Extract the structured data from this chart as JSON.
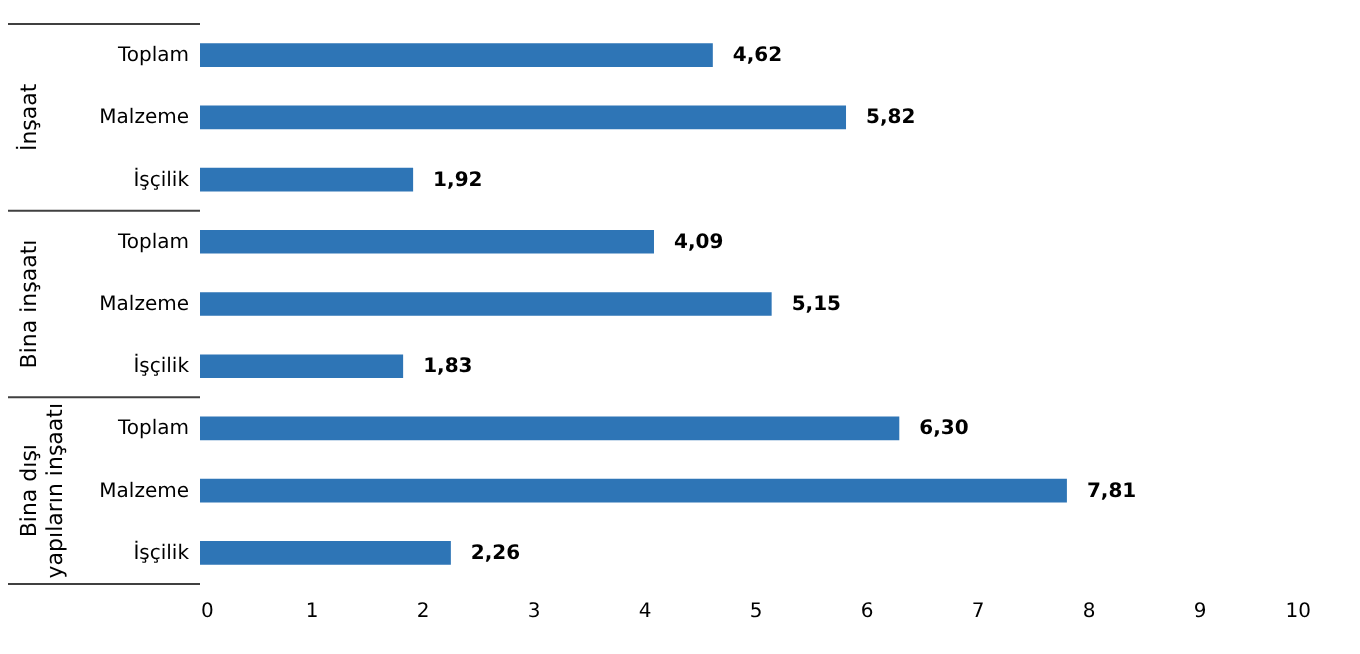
{
  "chart_data": {
    "type": "bar",
    "orientation": "horizontal",
    "categories": [
      "Toplam",
      "Malzeme",
      "İşçilik",
      "Toplam",
      "Malzeme",
      "İşçilik",
      "Toplam",
      "Malzeme",
      "İşçilik"
    ],
    "values": [
      4.62,
      5.82,
      1.92,
      4.09,
      5.15,
      1.83,
      6.3,
      7.81,
      2.26
    ],
    "value_labels": [
      "4,62",
      "5,82",
      "1,92",
      "4,09",
      "5,15",
      "1,83",
      "6,30",
      "7,81",
      "2,26"
    ],
    "color": "#2e75b6",
    "xlim": [
      0,
      10
    ],
    "xticks": [
      0,
      1,
      2,
      3,
      4,
      5,
      6,
      7,
      8,
      9,
      10
    ],
    "annotations": [
      "İnşaat",
      "Bina inşaatı",
      "Bina dışı yapıların inşaatı"
    ],
    "grid": false
  }
}
